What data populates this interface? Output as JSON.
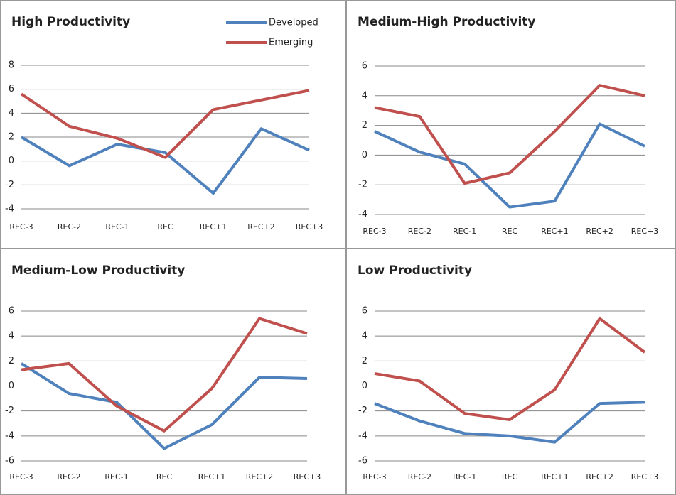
{
  "chart_data": [
    {
      "type": "line",
      "title": "High Productivity",
      "categories": [
        "REC-3",
        "REC-2",
        "REC-1",
        "REC",
        "REC+1",
        "REC+2",
        "REC+3"
      ],
      "series": [
        {
          "name": "Developed",
          "color": "#4f81bd",
          "values": [
            2.0,
            -0.4,
            1.4,
            0.7,
            -2.7,
            2.7,
            0.9
          ]
        },
        {
          "name": "Emerging",
          "color": "#c0504d",
          "values": [
            5.6,
            2.9,
            1.9,
            0.3,
            4.3,
            5.1,
            5.9
          ]
        }
      ],
      "ylim": [
        -4,
        8
      ],
      "yticks": [
        -4,
        -2,
        0,
        2,
        4,
        6,
        8
      ],
      "grid": true,
      "legend": "top-right"
    },
    {
      "type": "line",
      "title": "Medium-High Productivity",
      "categories": [
        "REC-3",
        "REC-2",
        "REC-1",
        "REC",
        "REC+1",
        "REC+2",
        "REC+3"
      ],
      "series": [
        {
          "name": "Developed",
          "color": "#4f81bd",
          "values": [
            1.6,
            0.2,
            -0.6,
            -3.5,
            -3.1,
            2.1,
            0.6
          ]
        },
        {
          "name": "Emerging",
          "color": "#c0504d",
          "values": [
            3.2,
            2.6,
            -1.9,
            -1.2,
            1.6,
            4.7,
            4.0
          ]
        }
      ],
      "ylim": [
        -4,
        6
      ],
      "yticks": [
        -4,
        -2,
        0,
        2,
        4,
        6
      ],
      "grid": true,
      "legend": false
    },
    {
      "type": "line",
      "title": "Medium-Low Productivity",
      "categories": [
        "REC-3",
        "REC-2",
        "REC-1",
        "REC",
        "REC+1",
        "REC+2",
        "REC+3"
      ],
      "series": [
        {
          "name": "Developed",
          "color": "#4f81bd",
          "values": [
            1.8,
            -0.6,
            -1.3,
            -5.0,
            -3.1,
            0.7,
            0.6
          ]
        },
        {
          "name": "Emerging",
          "color": "#c0504d",
          "values": [
            1.3,
            1.8,
            -1.6,
            -3.6,
            -0.2,
            5.4,
            4.2
          ]
        }
      ],
      "ylim": [
        -6,
        6
      ],
      "yticks": [
        -6,
        -4,
        -2,
        0,
        2,
        4,
        6
      ],
      "grid": true,
      "legend": false
    },
    {
      "type": "line",
      "title": "Low Productivity",
      "categories": [
        "REC-3",
        "REC-2",
        "REC-1",
        "REC",
        "REC+1",
        "REC+2",
        "REC+3"
      ],
      "series": [
        {
          "name": "Developed",
          "color": "#4f81bd",
          "values": [
            -1.4,
            -2.8,
            -3.8,
            -4.0,
            -4.5,
            -1.4,
            -1.3
          ]
        },
        {
          "name": "Emerging",
          "color": "#c0504d",
          "values": [
            1.0,
            0.4,
            -2.2,
            -2.7,
            -0.3,
            5.4,
            2.7
          ]
        }
      ],
      "ylim": [
        -6,
        6
      ],
      "yticks": [
        -6,
        -4,
        -2,
        0,
        2,
        4,
        6
      ],
      "grid": true,
      "legend": false
    }
  ]
}
